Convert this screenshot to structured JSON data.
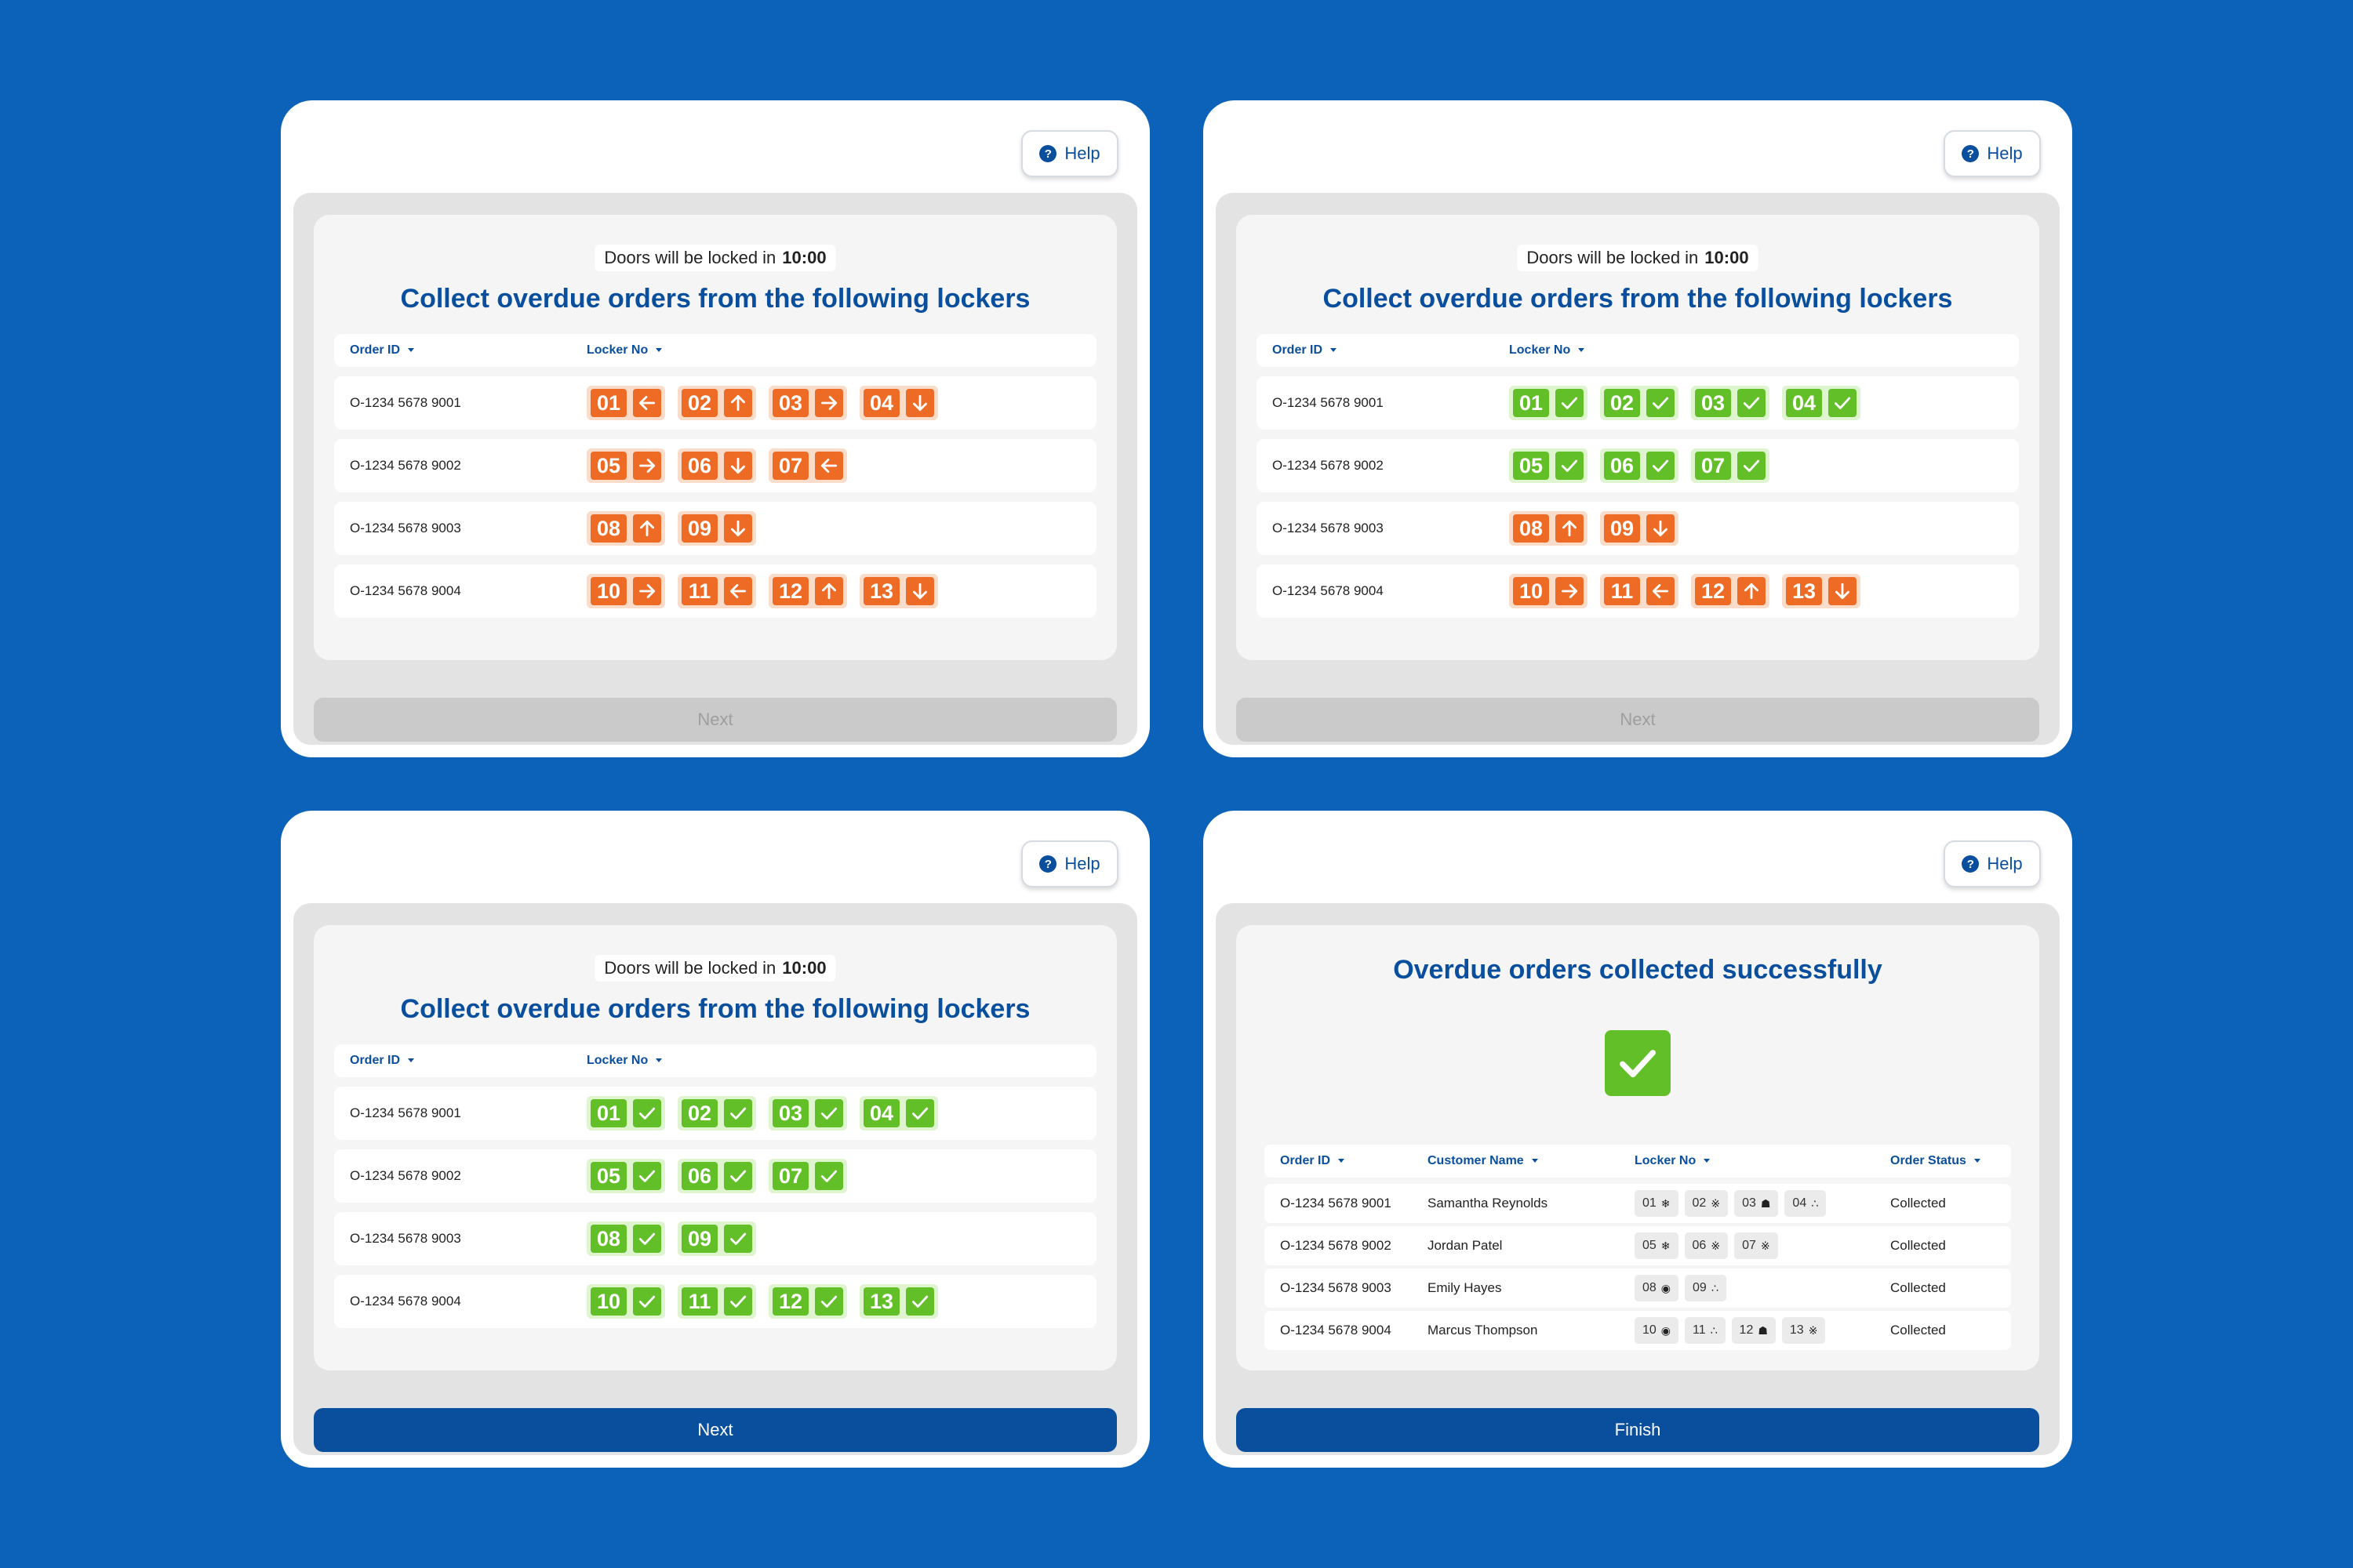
{
  "screens": [
    {
      "help_label": "Help",
      "timer_label": "Doors will be locked in",
      "timer_value": "10:00",
      "heading": "Collect overdue orders from the following lockers",
      "col_order": "Order ID",
      "col_locker": "Locker No",
      "button_label": "Next",
      "button_state": "disabled",
      "rows": [
        {
          "order_id": "O-1234 5678 9001",
          "lockers": [
            {
              "num": "01",
              "icon": "arrow-left"
            },
            {
              "num": "02",
              "icon": "arrow-up"
            },
            {
              "num": "03",
              "icon": "arrow-right"
            },
            {
              "num": "04",
              "icon": "arrow-down"
            }
          ]
        },
        {
          "order_id": "O-1234 5678 9002",
          "lockers": [
            {
              "num": "05",
              "icon": "arrow-right"
            },
            {
              "num": "06",
              "icon": "arrow-down"
            },
            {
              "num": "07",
              "icon": "arrow-left"
            }
          ]
        },
        {
          "order_id": "O-1234 5678 9003",
          "lockers": [
            {
              "num": "08",
              "icon": "arrow-up"
            },
            {
              "num": "09",
              "icon": "arrow-down"
            }
          ]
        },
        {
          "order_id": "O-1234 5678 9004",
          "lockers": [
            {
              "num": "10",
              "icon": "arrow-right"
            },
            {
              "num": "11",
              "icon": "arrow-left"
            },
            {
              "num": "12",
              "icon": "arrow-up"
            },
            {
              "num": "13",
              "icon": "arrow-down"
            }
          ]
        }
      ]
    },
    {
      "help_label": "Help",
      "timer_label": "Doors will be locked in",
      "timer_value": "10:00",
      "heading": "Collect overdue orders from the following lockers",
      "col_order": "Order ID",
      "col_locker": "Locker No",
      "button_label": "Next",
      "button_state": "disabled",
      "rows": [
        {
          "order_id": "O-1234 5678 9001",
          "lockers": [
            {
              "num": "01",
              "icon": "check"
            },
            {
              "num": "02",
              "icon": "check"
            },
            {
              "num": "03",
              "icon": "check"
            },
            {
              "num": "04",
              "icon": "check"
            }
          ]
        },
        {
          "order_id": "O-1234 5678 9002",
          "lockers": [
            {
              "num": "05",
              "icon": "check"
            },
            {
              "num": "06",
              "icon": "check"
            },
            {
              "num": "07",
              "icon": "check"
            }
          ]
        },
        {
          "order_id": "O-1234 5678 9003",
          "lockers": [
            {
              "num": "08",
              "icon": "arrow-up"
            },
            {
              "num": "09",
              "icon": "arrow-down"
            }
          ]
        },
        {
          "order_id": "O-1234 5678 9004",
          "lockers": [
            {
              "num": "10",
              "icon": "arrow-right"
            },
            {
              "num": "11",
              "icon": "arrow-left"
            },
            {
              "num": "12",
              "icon": "arrow-up"
            },
            {
              "num": "13",
              "icon": "arrow-down"
            }
          ]
        }
      ]
    },
    {
      "help_label": "Help",
      "timer_label": "Doors will be locked in",
      "timer_value": "10:00",
      "heading": "Collect overdue orders from the following lockers",
      "col_order": "Order ID",
      "col_locker": "Locker No",
      "button_label": "Next",
      "button_state": "active",
      "rows": [
        {
          "order_id": "O-1234 5678 9001",
          "lockers": [
            {
              "num": "01",
              "icon": "check"
            },
            {
              "num": "02",
              "icon": "check"
            },
            {
              "num": "03",
              "icon": "check"
            },
            {
              "num": "04",
              "icon": "check"
            }
          ]
        },
        {
          "order_id": "O-1234 5678 9002",
          "lockers": [
            {
              "num": "05",
              "icon": "check"
            },
            {
              "num": "06",
              "icon": "check"
            },
            {
              "num": "07",
              "icon": "check"
            }
          ]
        },
        {
          "order_id": "O-1234 5678 9003",
          "lockers": [
            {
              "num": "08",
              "icon": "check"
            },
            {
              "num": "09",
              "icon": "check"
            }
          ]
        },
        {
          "order_id": "O-1234 5678 9004",
          "lockers": [
            {
              "num": "10",
              "icon": "check"
            },
            {
              "num": "11",
              "icon": "check"
            },
            {
              "num": "12",
              "icon": "check"
            },
            {
              "num": "13",
              "icon": "check"
            }
          ]
        }
      ]
    }
  ],
  "success": {
    "help_label": "Help",
    "title": "Overdue orders collected successfully",
    "col_order": "Order ID",
    "col_customer": "Customer Name",
    "col_locker": "Locker No",
    "col_status": "Order Status",
    "button_label": "Finish",
    "rows": [
      {
        "order_id": "O-1234 5678 9001",
        "customer": "Samantha Reynolds",
        "status": "Collected",
        "lockers": [
          {
            "num": "01",
            "glyph": "❄"
          },
          {
            "num": "02",
            "glyph": "※"
          },
          {
            "num": "03",
            "glyph": "☗"
          },
          {
            "num": "04",
            "glyph": "∴"
          }
        ]
      },
      {
        "order_id": "O-1234 5678 9002",
        "customer": "Jordan Patel",
        "status": "Collected",
        "lockers": [
          {
            "num": "05",
            "glyph": "❄"
          },
          {
            "num": "06",
            "glyph": "※"
          },
          {
            "num": "07",
            "glyph": "※"
          }
        ]
      },
      {
        "order_id": "O-1234 5678 9003",
        "customer": "Emily Hayes",
        "status": "Collected",
        "lockers": [
          {
            "num": "08",
            "glyph": "◉"
          },
          {
            "num": "09",
            "glyph": "∴"
          }
        ]
      },
      {
        "order_id": "O-1234 5678 9004",
        "customer": "Marcus Thompson",
        "status": "Collected",
        "lockers": [
          {
            "num": "10",
            "glyph": "◉"
          },
          {
            "num": "11",
            "glyph": "∴"
          },
          {
            "num": "12",
            "glyph": "☗"
          },
          {
            "num": "13",
            "glyph": "※"
          }
        ]
      }
    ]
  },
  "colors": {
    "background": "#0b62b8",
    "brand": "#0a4f9e",
    "orange": "#ee6b25",
    "green": "#62bf28"
  }
}
